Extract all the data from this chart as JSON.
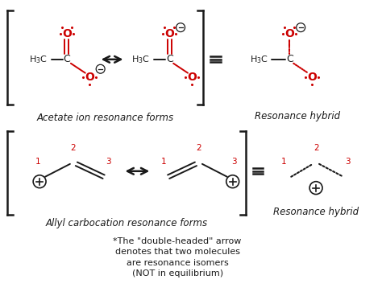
{
  "bg_color": "#ffffff",
  "black": "#1a1a1a",
  "red": "#cc0000",
  "fig_width": 4.74,
  "fig_height": 3.68,
  "dpi": 100,
  "caption_acetate": "Acetate ion resonance forms",
  "caption_allyl": "Allyl carbocation resonance forms",
  "caption_hybrid": "Resonance hybrid",
  "footnote": "*The \"double-headed\" arrow\ndenotes that two molecules\nare resonance isomers\n(NOT in equilibrium)"
}
